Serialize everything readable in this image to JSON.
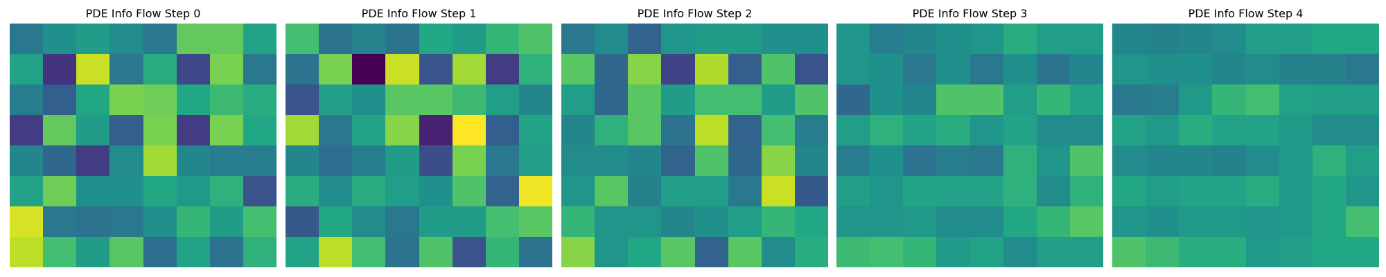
{
  "chart_data": [
    {
      "type": "heatmap",
      "title": "PDE Info Flow Step 0",
      "colormap": "viridis",
      "rows": 8,
      "cols": 8,
      "values": [
        [
          0.4,
          0.5,
          0.55,
          0.48,
          0.4,
          0.76,
          0.76,
          0.58
        ],
        [
          0.58,
          0.15,
          0.92,
          0.4,
          0.62,
          0.22,
          0.8,
          0.4
        ],
        [
          0.42,
          0.3,
          0.6,
          0.8,
          0.78,
          0.6,
          0.68,
          0.62
        ],
        [
          0.18,
          0.76,
          0.55,
          0.3,
          0.8,
          0.18,
          0.8,
          0.6
        ],
        [
          0.46,
          0.34,
          0.18,
          0.48,
          0.86,
          0.46,
          0.42,
          0.42
        ],
        [
          0.58,
          0.78,
          0.5,
          0.5,
          0.6,
          0.54,
          0.64,
          0.26
        ],
        [
          0.94,
          0.4,
          0.38,
          0.4,
          0.5,
          0.66,
          0.55,
          0.7
        ],
        [
          0.9,
          0.7,
          0.55,
          0.74,
          0.36,
          0.58,
          0.38,
          0.64
        ]
      ]
    },
    {
      "type": "heatmap",
      "title": "PDE Info Flow Step 1",
      "colormap": "viridis",
      "rows": 8,
      "cols": 8,
      "values": [
        [
          0.7,
          0.38,
          0.45,
          0.38,
          0.6,
          0.55,
          0.66,
          0.72
        ],
        [
          0.38,
          0.8,
          0.0,
          0.92,
          0.26,
          0.86,
          0.18,
          0.64
        ],
        [
          0.26,
          0.56,
          0.5,
          0.74,
          0.74,
          0.68,
          0.56,
          0.46
        ],
        [
          0.86,
          0.4,
          0.58,
          0.82,
          0.1,
          1.0,
          0.3,
          0.58
        ],
        [
          0.46,
          0.36,
          0.42,
          0.55,
          0.24,
          0.8,
          0.4,
          0.56
        ],
        [
          0.62,
          0.48,
          0.62,
          0.56,
          0.5,
          0.72,
          0.32,
          0.98
        ],
        [
          0.28,
          0.6,
          0.48,
          0.4,
          0.55,
          0.55,
          0.7,
          0.74
        ],
        [
          0.58,
          0.9,
          0.7,
          0.38,
          0.72,
          0.26,
          0.66,
          0.38
        ]
      ]
    },
    {
      "type": "heatmap",
      "title": "PDE Info Flow Step 2",
      "colormap": "viridis",
      "rows": 8,
      "cols": 8,
      "values": [
        [
          0.4,
          0.48,
          0.32,
          0.52,
          0.55,
          0.55,
          0.5,
          0.5
        ],
        [
          0.74,
          0.34,
          0.82,
          0.2,
          0.88,
          0.3,
          0.72,
          0.26
        ],
        [
          0.56,
          0.34,
          0.74,
          0.55,
          0.7,
          0.7,
          0.55,
          0.72
        ],
        [
          0.46,
          0.64,
          0.74,
          0.38,
          0.9,
          0.32,
          0.7,
          0.42
        ],
        [
          0.48,
          0.48,
          0.46,
          0.32,
          0.72,
          0.34,
          0.82,
          0.46
        ],
        [
          0.52,
          0.74,
          0.44,
          0.56,
          0.56,
          0.4,
          0.92,
          0.28
        ],
        [
          0.66,
          0.52,
          0.52,
          0.46,
          0.5,
          0.56,
          0.66,
          0.6
        ],
        [
          0.82,
          0.52,
          0.6,
          0.74,
          0.32,
          0.74,
          0.48,
          0.62
        ]
      ]
    },
    {
      "type": "heatmap",
      "title": "PDE Info Flow Step 3",
      "colormap": "viridis",
      "rows": 8,
      "cols": 8,
      "values": [
        [
          0.52,
          0.42,
          0.46,
          0.5,
          0.52,
          0.62,
          0.56,
          0.56
        ],
        [
          0.52,
          0.5,
          0.4,
          0.5,
          0.4,
          0.5,
          0.38,
          0.46
        ],
        [
          0.34,
          0.5,
          0.46,
          0.72,
          0.72,
          0.56,
          0.66,
          0.58
        ],
        [
          0.56,
          0.64,
          0.58,
          0.62,
          0.52,
          0.58,
          0.48,
          0.48
        ],
        [
          0.42,
          0.5,
          0.38,
          0.42,
          0.4,
          0.64,
          0.52,
          0.72
        ],
        [
          0.56,
          0.52,
          0.58,
          0.58,
          0.58,
          0.64,
          0.48,
          0.64
        ],
        [
          0.52,
          0.52,
          0.54,
          0.48,
          0.48,
          0.6,
          0.66,
          0.74
        ],
        [
          0.68,
          0.7,
          0.66,
          0.54,
          0.58,
          0.48,
          0.56,
          0.56
        ]
      ]
    },
    {
      "type": "heatmap",
      "title": "PDE Info Flow Step 4",
      "colormap": "viridis",
      "rows": 8,
      "cols": 8,
      "values": [
        [
          0.46,
          0.44,
          0.46,
          0.48,
          0.56,
          0.56,
          0.6,
          0.6
        ],
        [
          0.52,
          0.5,
          0.5,
          0.46,
          0.48,
          0.44,
          0.44,
          0.4
        ],
        [
          0.4,
          0.42,
          0.54,
          0.66,
          0.7,
          0.58,
          0.56,
          0.56
        ],
        [
          0.58,
          0.54,
          0.62,
          0.58,
          0.58,
          0.54,
          0.48,
          0.48
        ],
        [
          0.48,
          0.46,
          0.46,
          0.44,
          0.48,
          0.54,
          0.64,
          0.56
        ],
        [
          0.6,
          0.56,
          0.58,
          0.58,
          0.62,
          0.54,
          0.6,
          0.52
        ],
        [
          0.52,
          0.5,
          0.54,
          0.54,
          0.52,
          0.54,
          0.6,
          0.7
        ],
        [
          0.72,
          0.68,
          0.62,
          0.62,
          0.54,
          0.56,
          0.6,
          0.6
        ]
      ]
    }
  ]
}
